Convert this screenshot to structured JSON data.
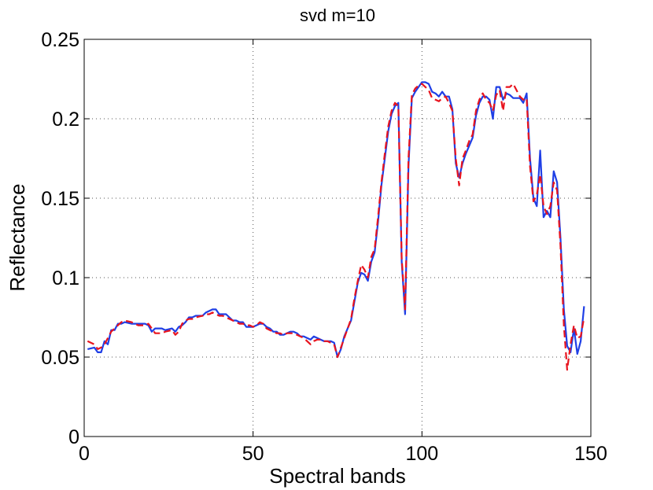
{
  "chart_data": {
    "type": "line",
    "title": "svd m=10",
    "xlabel": "Spectral bands",
    "ylabel": "Reflectance",
    "xlim": [
      0,
      150
    ],
    "ylim": [
      0,
      0.25
    ],
    "xticks": [
      0,
      50,
      100,
      150
    ],
    "xtick_labels": [
      "0",
      "50",
      "100",
      "150"
    ],
    "yticks": [
      0,
      0.05,
      0.1,
      0.15,
      0.2,
      0.25
    ],
    "ytick_labels": [
      "0",
      "0.05",
      "0.1",
      "0.15",
      "0.2",
      "0.25"
    ],
    "grid": true,
    "series": [
      {
        "style": "solid",
        "color": "#1f3fe6",
        "points": [
          [
            1,
            0.055
          ],
          [
            3,
            0.056
          ],
          [
            4,
            0.053
          ],
          [
            5,
            0.053
          ],
          [
            6,
            0.06
          ],
          [
            7,
            0.058
          ],
          [
            8,
            0.067
          ],
          [
            9,
            0.067
          ],
          [
            10,
            0.071
          ],
          [
            11,
            0.071
          ],
          [
            12,
            0.072
          ],
          [
            14,
            0.071
          ],
          [
            16,
            0.071
          ],
          [
            18,
            0.071
          ],
          [
            19,
            0.07
          ],
          [
            20,
            0.066
          ],
          [
            21,
            0.068
          ],
          [
            23,
            0.068
          ],
          [
            24,
            0.067
          ],
          [
            26,
            0.068
          ],
          [
            27,
            0.066
          ],
          [
            28,
            0.069
          ],
          [
            29,
            0.07
          ],
          [
            30,
            0.072
          ],
          [
            31,
            0.075
          ],
          [
            32,
            0.075
          ],
          [
            33,
            0.076
          ],
          [
            35,
            0.076
          ],
          [
            36,
            0.078
          ],
          [
            37,
            0.079
          ],
          [
            38,
            0.08
          ],
          [
            39,
            0.08
          ],
          [
            40,
            0.077
          ],
          [
            41,
            0.077
          ],
          [
            42,
            0.077
          ],
          [
            43,
            0.075
          ],
          [
            44,
            0.073
          ],
          [
            45,
            0.073
          ],
          [
            46,
            0.072
          ],
          [
            47,
            0.072
          ],
          [
            48,
            0.069
          ],
          [
            49,
            0.069
          ],
          [
            50,
            0.069
          ],
          [
            51,
            0.07
          ],
          [
            52,
            0.071
          ],
          [
            53,
            0.071
          ],
          [
            54,
            0.069
          ],
          [
            55,
            0.068
          ],
          [
            56,
            0.066
          ],
          [
            57,
            0.066
          ],
          [
            58,
            0.064
          ],
          [
            59,
            0.064
          ],
          [
            60,
            0.065
          ],
          [
            61,
            0.066
          ],
          [
            62,
            0.066
          ],
          [
            63,
            0.065
          ],
          [
            64,
            0.063
          ],
          [
            65,
            0.063
          ],
          [
            66,
            0.062
          ],
          [
            67,
            0.061
          ],
          [
            68,
            0.063
          ],
          [
            69,
            0.062
          ],
          [
            70,
            0.061
          ],
          [
            71,
            0.06
          ],
          [
            72,
            0.06
          ],
          [
            73,
            0.06
          ],
          [
            74,
            0.059
          ],
          [
            75,
            0.05
          ],
          [
            76,
            0.055
          ],
          [
            77,
            0.063
          ],
          [
            78,
            0.068
          ],
          [
            79,
            0.073
          ],
          [
            80,
            0.085
          ],
          [
            81,
            0.097
          ],
          [
            82,
            0.103
          ],
          [
            83,
            0.102
          ],
          [
            84,
            0.098
          ],
          [
            85,
            0.11
          ],
          [
            86,
            0.116
          ],
          [
            87,
            0.135
          ],
          [
            88,
            0.158
          ],
          [
            89,
            0.175
          ],
          [
            90,
            0.192
          ],
          [
            91,
            0.203
          ],
          [
            92,
            0.208
          ],
          [
            93,
            0.21
          ],
          [
            94,
            0.11
          ],
          [
            95,
            0.077
          ],
          [
            96,
            0.17
          ],
          [
            97,
            0.213
          ],
          [
            98,
            0.217
          ],
          [
            99,
            0.22
          ],
          [
            100,
            0.223
          ],
          [
            101,
            0.223
          ],
          [
            102,
            0.222
          ],
          [
            103,
            0.217
          ],
          [
            104,
            0.216
          ],
          [
            105,
            0.214
          ],
          [
            106,
            0.217
          ],
          [
            107,
            0.214
          ],
          [
            108,
            0.214
          ],
          [
            109,
            0.206
          ],
          [
            110,
            0.172
          ],
          [
            111,
            0.163
          ],
          [
            112,
            0.172
          ],
          [
            113,
            0.178
          ],
          [
            114,
            0.183
          ],
          [
            115,
            0.188
          ],
          [
            116,
            0.202
          ],
          [
            117,
            0.21
          ],
          [
            118,
            0.214
          ],
          [
            119,
            0.214
          ],
          [
            120,
            0.212
          ],
          [
            121,
            0.2
          ],
          [
            122,
            0.22
          ],
          [
            123,
            0.22
          ],
          [
            124,
            0.212
          ],
          [
            125,
            0.216
          ],
          [
            126,
            0.215
          ],
          [
            127,
            0.213
          ],
          [
            128,
            0.213
          ],
          [
            129,
            0.213
          ],
          [
            130,
            0.21
          ],
          [
            131,
            0.216
          ],
          [
            132,
            0.175
          ],
          [
            133,
            0.15
          ],
          [
            134,
            0.145
          ],
          [
            135,
            0.18
          ],
          [
            136,
            0.138
          ],
          [
            137,
            0.142
          ],
          [
            138,
            0.138
          ],
          [
            139,
            0.167
          ],
          [
            140,
            0.16
          ],
          [
            141,
            0.125
          ],
          [
            142,
            0.08
          ],
          [
            143,
            0.057
          ],
          [
            144,
            0.053
          ],
          [
            145,
            0.068
          ],
          [
            146,
            0.052
          ],
          [
            147,
            0.06
          ],
          [
            148,
            0.082
          ]
        ]
      },
      {
        "style": "dashed",
        "color": "#e8141e",
        "points": [
          [
            1,
            0.06
          ],
          [
            3,
            0.058
          ],
          [
            4,
            0.055
          ],
          [
            5,
            0.056
          ],
          [
            6,
            0.058
          ],
          [
            7,
            0.062
          ],
          [
            8,
            0.066
          ],
          [
            9,
            0.068
          ],
          [
            10,
            0.07
          ],
          [
            11,
            0.072
          ],
          [
            12,
            0.073
          ],
          [
            14,
            0.072
          ],
          [
            16,
            0.07
          ],
          [
            18,
            0.07
          ],
          [
            19,
            0.071
          ],
          [
            20,
            0.068
          ],
          [
            21,
            0.065
          ],
          [
            23,
            0.065
          ],
          [
            24,
            0.066
          ],
          [
            26,
            0.067
          ],
          [
            27,
            0.064
          ],
          [
            28,
            0.066
          ],
          [
            29,
            0.071
          ],
          [
            30,
            0.073
          ],
          [
            31,
            0.074
          ],
          [
            32,
            0.074
          ],
          [
            33,
            0.075
          ],
          [
            35,
            0.076
          ],
          [
            36,
            0.077
          ],
          [
            37,
            0.077
          ],
          [
            38,
            0.078
          ],
          [
            39,
            0.077
          ],
          [
            40,
            0.076
          ],
          [
            41,
            0.076
          ],
          [
            42,
            0.075
          ],
          [
            43,
            0.074
          ],
          [
            44,
            0.073
          ],
          [
            45,
            0.072
          ],
          [
            46,
            0.071
          ],
          [
            47,
            0.071
          ],
          [
            48,
            0.07
          ],
          [
            49,
            0.07
          ],
          [
            50,
            0.069
          ],
          [
            51,
            0.07
          ],
          [
            52,
            0.072
          ],
          [
            53,
            0.071
          ],
          [
            54,
            0.068
          ],
          [
            55,
            0.067
          ],
          [
            56,
            0.066
          ],
          [
            57,
            0.065
          ],
          [
            58,
            0.065
          ],
          [
            59,
            0.064
          ],
          [
            60,
            0.065
          ],
          [
            61,
            0.065
          ],
          [
            62,
            0.065
          ],
          [
            63,
            0.064
          ],
          [
            64,
            0.063
          ],
          [
            65,
            0.062
          ],
          [
            66,
            0.06
          ],
          [
            67,
            0.058
          ],
          [
            68,
            0.06
          ],
          [
            69,
            0.061
          ],
          [
            70,
            0.061
          ],
          [
            71,
            0.06
          ],
          [
            72,
            0.06
          ],
          [
            73,
            0.059
          ],
          [
            74,
            0.058
          ],
          [
            75,
            0.05
          ],
          [
            76,
            0.056
          ],
          [
            77,
            0.062
          ],
          [
            78,
            0.068
          ],
          [
            79,
            0.074
          ],
          [
            80,
            0.087
          ],
          [
            81,
            0.098
          ],
          [
            82,
            0.108
          ],
          [
            83,
            0.105
          ],
          [
            84,
            0.1
          ],
          [
            85,
            0.113
          ],
          [
            86,
            0.118
          ],
          [
            87,
            0.138
          ],
          [
            88,
            0.16
          ],
          [
            89,
            0.178
          ],
          [
            90,
            0.195
          ],
          [
            91,
            0.205
          ],
          [
            92,
            0.21
          ],
          [
            93,
            0.208
          ],
          [
            94,
            0.112
          ],
          [
            95,
            0.08
          ],
          [
            96,
            0.175
          ],
          [
            97,
            0.215
          ],
          [
            98,
            0.219
          ],
          [
            99,
            0.221
          ],
          [
            100,
            0.222
          ],
          [
            101,
            0.22
          ],
          [
            102,
            0.218
          ],
          [
            103,
            0.213
          ],
          [
            104,
            0.212
          ],
          [
            105,
            0.211
          ],
          [
            106,
            0.213
          ],
          [
            107,
            0.214
          ],
          [
            108,
            0.21
          ],
          [
            109,
            0.205
          ],
          [
            110,
            0.175
          ],
          [
            111,
            0.158
          ],
          [
            112,
            0.175
          ],
          [
            113,
            0.18
          ],
          [
            114,
            0.186
          ],
          [
            115,
            0.19
          ],
          [
            116,
            0.205
          ],
          [
            117,
            0.212
          ],
          [
            118,
            0.216
          ],
          [
            119,
            0.212
          ],
          [
            120,
            0.21
          ],
          [
            121,
            0.205
          ],
          [
            122,
            0.215
          ],
          [
            123,
            0.218
          ],
          [
            124,
            0.205
          ],
          [
            125,
            0.22
          ],
          [
            126,
            0.22
          ],
          [
            127,
            0.222
          ],
          [
            128,
            0.218
          ],
          [
            129,
            0.214
          ],
          [
            130,
            0.212
          ],
          [
            131,
            0.213
          ],
          [
            132,
            0.17
          ],
          [
            133,
            0.148
          ],
          [
            134,
            0.152
          ],
          [
            135,
            0.165
          ],
          [
            136,
            0.145
          ],
          [
            137,
            0.14
          ],
          [
            138,
            0.145
          ],
          [
            139,
            0.16
          ],
          [
            140,
            0.155
          ],
          [
            141,
            0.12
          ],
          [
            142,
            0.07
          ],
          [
            143,
            0.042
          ],
          [
            144,
            0.058
          ],
          [
            145,
            0.07
          ],
          [
            146,
            0.062
          ],
          [
            147,
            0.063
          ],
          [
            148,
            0.075
          ]
        ]
      }
    ]
  }
}
